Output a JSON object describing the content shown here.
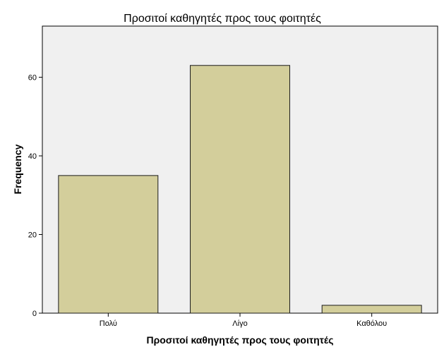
{
  "chart_data": {
    "type": "bar",
    "title": "Προσιτοί καθηγητές προς τους φοιτητές",
    "xlabel": "Προσιτοί καθηγητές προς τους φοιτητές",
    "ylabel": "Frequency",
    "categories": [
      "Πολύ",
      "Λίγο",
      "Καθόλου"
    ],
    "values": [
      35,
      63,
      2
    ],
    "ylim": [
      0,
      73
    ],
    "yticks": [
      0,
      20,
      40,
      60
    ],
    "grid": false,
    "legend": "none",
    "colors": {
      "bar_fill": "#d3ce9b",
      "bar_stroke": "#1a1a1a",
      "plot_background": "#f0f0f0",
      "axis": "#000000"
    }
  }
}
